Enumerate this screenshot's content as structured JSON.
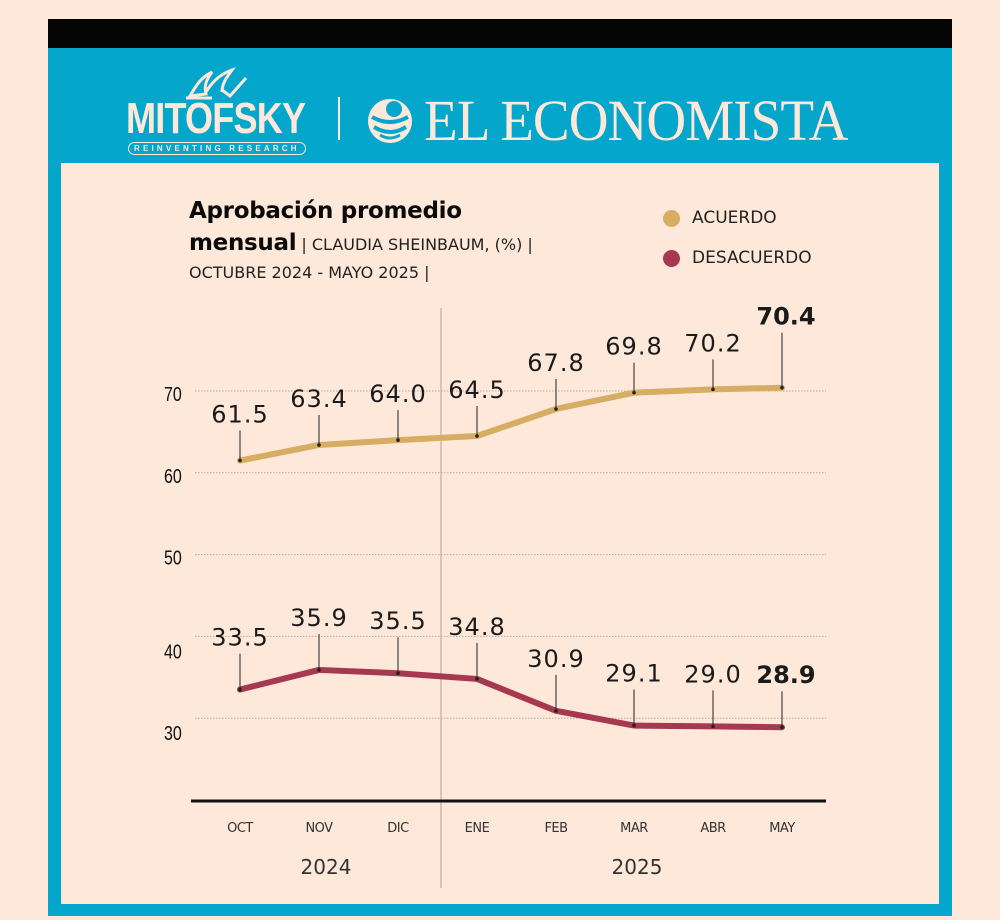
{
  "header": {
    "mitofsky_name": "MITOFSKY",
    "mitofsky_tagline": "REINVENTING RESEARCH",
    "publisher_name": "EL ECONOMISTA"
  },
  "title": {
    "line1": "Aprobación promedio",
    "line2_bold": "mensual",
    "line2_sep1": " | ",
    "line2_sub": "CLAUDIA SHEINBAUM, (%)",
    "line2_sep2": " |",
    "line3": "OCTUBRE 2024 -  MAYO 2025",
    "line3_sep": " |"
  },
  "legend": [
    {
      "label": "ACUERDO",
      "color": "#d6ad63"
    },
    {
      "label": "DESACUERDO",
      "color": "#a63850"
    }
  ],
  "chart_data": {
    "type": "line",
    "title": "Aprobación promedio mensual | CLAUDIA SHEINBAUM, (%) | OCTUBRE 2024 - MAYO 2025",
    "xlabel": "",
    "ylabel": "",
    "categories": [
      "OCT",
      "NOV",
      "DIC",
      "ENE",
      "FEB",
      "MAR",
      "ABR",
      "MAY"
    ],
    "year_groups": [
      {
        "label": "2024",
        "months": [
          "OCT",
          "NOV",
          "DIC"
        ]
      },
      {
        "label": "2025",
        "months": [
          "ENE",
          "FEB",
          "MAR",
          "ABR",
          "MAY"
        ]
      }
    ],
    "yticks": [
      70,
      60,
      50,
      40,
      30
    ],
    "ylim": [
      20,
      75
    ],
    "grid": true,
    "legend_position": "top-right",
    "series": [
      {
        "name": "ACUERDO",
        "color": "#d6ad63",
        "values": [
          61.5,
          63.4,
          64.0,
          64.5,
          67.8,
          69.8,
          70.2,
          70.4
        ],
        "labels": [
          "61.5",
          "63.4",
          "64.0",
          "64.5",
          "67.8",
          "69.8",
          "70.2",
          "70.4"
        ]
      },
      {
        "name": "DESACUERDO",
        "color": "#a63850",
        "values": [
          33.5,
          35.9,
          35.5,
          34.8,
          30.9,
          29.1,
          29.0,
          28.9
        ],
        "labels": [
          "33.5",
          "35.9",
          "35.5",
          "34.8",
          "30.9",
          "29.1",
          "29.0",
          "28.9"
        ]
      }
    ]
  },
  "colors": {
    "frame": "#04a6cc",
    "background": "#fde8da",
    "topbar": "#050505"
  }
}
